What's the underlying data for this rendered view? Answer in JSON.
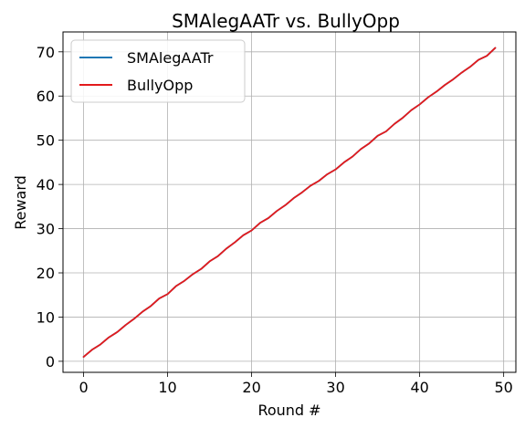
{
  "chart_data": {
    "type": "line",
    "title": "SMAlegAATr vs. BullyOpp",
    "xlabel": "Round #",
    "ylabel": "Reward",
    "xlim": [
      -2.45,
      51.45
    ],
    "ylim": [
      -2.5,
      74.5
    ],
    "xticks": [
      0,
      10,
      20,
      30,
      40,
      50
    ],
    "yticks": [
      0,
      10,
      20,
      30,
      40,
      50,
      60,
      70
    ],
    "grid": true,
    "legend_position": "upper-left",
    "x": [
      0,
      1,
      2,
      3,
      4,
      5,
      6,
      7,
      8,
      9,
      10,
      11,
      12,
      13,
      14,
      15,
      16,
      17,
      18,
      19,
      20,
      21,
      22,
      23,
      24,
      25,
      26,
      27,
      28,
      29,
      30,
      31,
      32,
      33,
      34,
      35,
      36,
      37,
      38,
      39,
      40,
      41,
      42,
      43,
      44,
      45,
      46,
      47,
      48,
      49
    ],
    "series": [
      {
        "name": "SMAlegAATr",
        "color": "#1f77b4",
        "values": [
          1.0,
          2.6,
          3.8,
          5.4,
          6.6,
          8.2,
          9.6,
          11.2,
          12.5,
          14.2,
          15.2,
          17.0,
          18.2,
          19.7,
          20.9,
          22.6,
          23.8,
          25.5,
          26.9,
          28.5,
          29.6,
          31.3,
          32.4,
          34.0,
          35.3,
          36.9,
          38.2,
          39.7,
          40.8,
          42.3,
          43.4,
          45.0,
          46.3,
          48.0,
          49.3,
          51.0,
          52.0,
          53.7,
          55.1,
          56.8,
          58.1,
          59.7,
          61.0,
          62.5,
          63.8,
          65.3,
          66.6,
          68.2,
          69.1,
          70.9
        ]
      },
      {
        "name": "BullyOpp",
        "color": "#e31a1c",
        "values": [
          1.0,
          2.6,
          3.8,
          5.4,
          6.6,
          8.2,
          9.6,
          11.2,
          12.5,
          14.2,
          15.2,
          17.0,
          18.2,
          19.7,
          20.9,
          22.6,
          23.8,
          25.5,
          26.9,
          28.5,
          29.6,
          31.3,
          32.4,
          34.0,
          35.3,
          36.9,
          38.2,
          39.7,
          40.8,
          42.3,
          43.4,
          45.0,
          46.3,
          48.0,
          49.3,
          51.0,
          52.0,
          53.7,
          55.1,
          56.8,
          58.1,
          59.7,
          61.0,
          62.5,
          63.8,
          65.3,
          66.6,
          68.2,
          69.1,
          70.9
        ]
      }
    ]
  }
}
